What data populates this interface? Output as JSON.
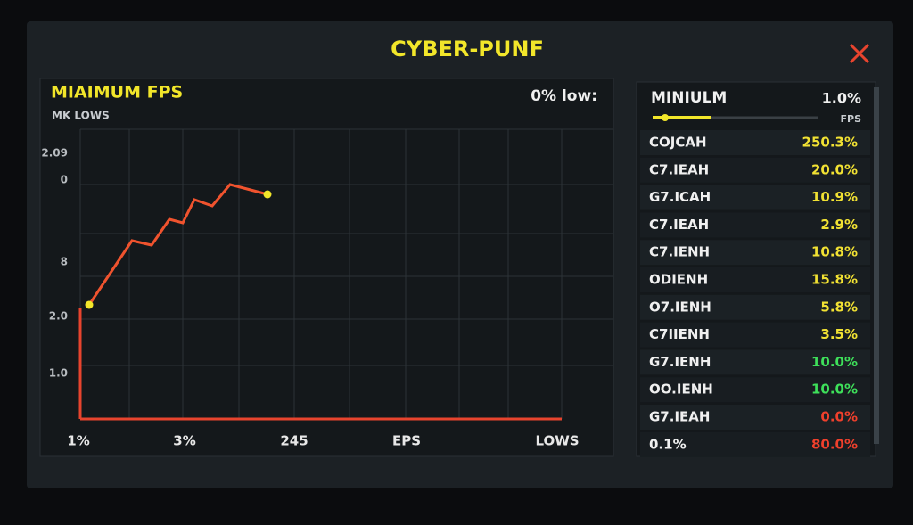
{
  "header": {
    "title": "CYBER-PUNF"
  },
  "left_panel": {
    "title": "MIAIMUM FPS",
    "subtitle": "MK LOWS",
    "badge": "0% low:",
    "y_labels": [
      "2.09",
      "0",
      "8",
      "2.0",
      "1.0"
    ],
    "x_labels": [
      "1%",
      "3%",
      "245",
      "EPS",
      "LOWS"
    ]
  },
  "right_panel": {
    "title": "MINIULM",
    "value": "1.0%",
    "unit": "FPS",
    "rows": [
      {
        "label": "COJCAH",
        "value": "250.3%",
        "color": "#f2e233"
      },
      {
        "label": "C7.IEAH",
        "value": "20.0%",
        "color": "#f2e233"
      },
      {
        "label": "G7.ICAH",
        "value": "10.9%",
        "color": "#f2e233"
      },
      {
        "label": "C7.IEAH",
        "value": "2.9%",
        "color": "#f2e233"
      },
      {
        "label": "C7.IENH",
        "value": "10.8%",
        "color": "#f2e233"
      },
      {
        "label": "ODIENH",
        "value": "15.8%",
        "color": "#f2e233"
      },
      {
        "label": "O7.IENH",
        "value": "5.8%",
        "color": "#f2e233"
      },
      {
        "label": "C7IIENH",
        "value": "3.5%",
        "color": "#f2e233"
      },
      {
        "label": "G7.IENH",
        "value": "10.0%",
        "color": "#3ee05a"
      },
      {
        "label": "OO.IENH",
        "value": "10.0%",
        "color": "#3ee05a"
      },
      {
        "label": "G7.IEAH",
        "value": "0.0%",
        "color": "#f0402c"
      },
      {
        "label": "0.1%",
        "value": "80.0%",
        "color": "#f0402c"
      }
    ]
  }
}
